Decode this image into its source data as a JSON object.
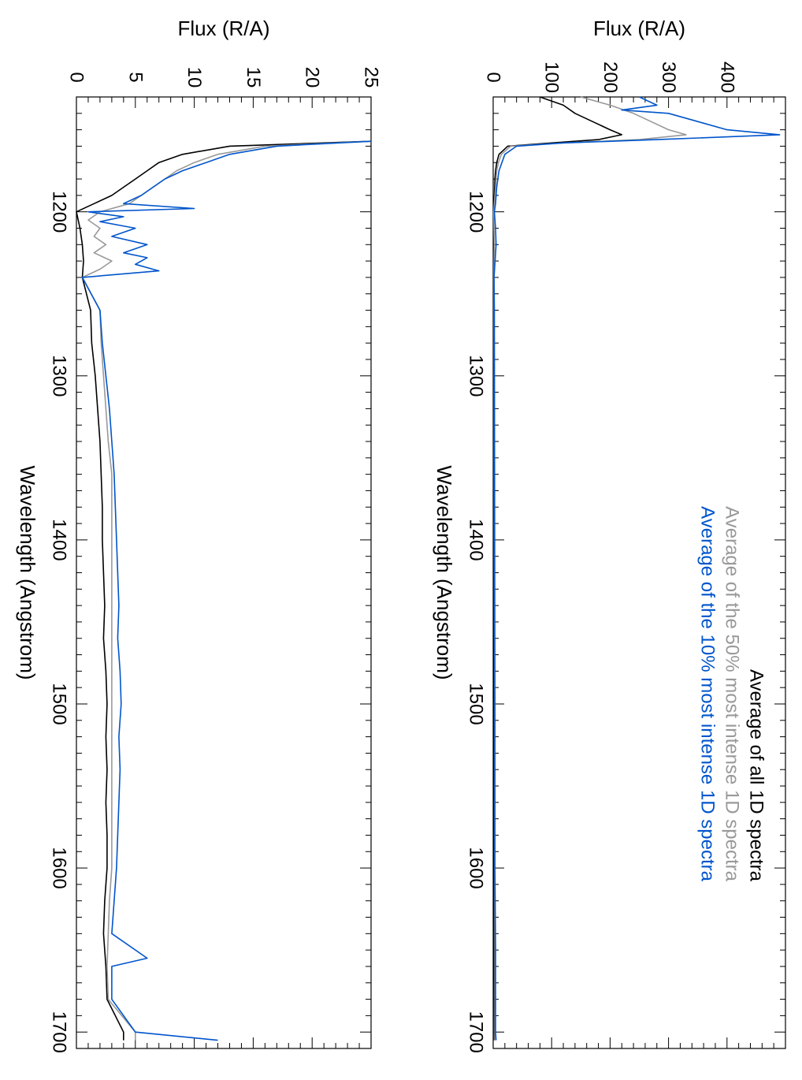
{
  "colors": {
    "all": "#000000",
    "top50": "#999999",
    "top10": "#0055cc",
    "axes": "#000000"
  },
  "orientation": "rotated-90-clockwise",
  "chart_data": [
    {
      "type": "line",
      "panel": "upper",
      "xlabel": "Wavelength (Angstrom)",
      "ylabel": "Flux (R/A)",
      "xlim": [
        1130,
        1710
      ],
      "ylim": [
        0,
        500
      ],
      "x_ticks": [
        1200,
        1300,
        1400,
        1500,
        1600,
        1700
      ],
      "y_ticks": [
        0,
        100,
        200,
        300,
        400
      ],
      "legend_position": "top-right",
      "legend": [
        "Average of all 1D spectra",
        "Average of the 50% most intense 1D spectra",
        "Average of the 10% most intense 1D spectra"
      ],
      "series": [
        {
          "name": "Average of all 1D spectra",
          "color": "#000000",
          "x": [
            1130,
            1135,
            1140,
            1145,
            1150,
            1153,
            1156,
            1158,
            1160,
            1165,
            1170,
            1175,
            1180,
            1185,
            1190,
            1195,
            1200,
            1210,
            1220,
            1240,
            1260,
            1300,
            1400,
            1500,
            1600,
            1650,
            1700,
            1705
          ],
          "y": [
            80,
            120,
            140,
            170,
            200,
            220,
            180,
            100,
            25,
            10,
            6,
            4,
            3,
            2.5,
            2,
            1,
            0.5,
            0.5,
            0.6,
            0.8,
            1,
            1,
            1.2,
            1.3,
            1.4,
            1.6,
            2,
            2
          ]
        },
        {
          "name": "Average of the 50% most intense 1D spectra",
          "color": "#999999",
          "x": [
            1130,
            1135,
            1140,
            1145,
            1150,
            1153,
            1156,
            1158,
            1160,
            1165,
            1170,
            1175,
            1180,
            1185,
            1190,
            1195,
            1200,
            1210,
            1220,
            1240,
            1260,
            1300,
            1400,
            1500,
            1600,
            1650,
            1700,
            1705
          ],
          "y": [
            150,
            200,
            240,
            270,
            300,
            330,
            250,
            120,
            30,
            14,
            9,
            6,
            5,
            4,
            3,
            2,
            1,
            1.5,
            2,
            1.2,
            1.5,
            1.8,
            2,
            2.5,
            2.5,
            3,
            3,
            3
          ]
        },
        {
          "name": "Average of the 10% most intense 1D spectra",
          "color": "#0055cc",
          "x": [
            1130,
            1135,
            1138,
            1140,
            1145,
            1150,
            1153,
            1156,
            1158,
            1160,
            1165,
            1170,
            1175,
            1180,
            1185,
            1190,
            1195,
            1200,
            1210,
            1220,
            1240,
            1260,
            1300,
            1400,
            1500,
            1600,
            1650,
            1700,
            1705
          ],
          "y": [
            250,
            280,
            220,
            300,
            350,
            400,
            490,
            280,
            120,
            40,
            20,
            15,
            10,
            8,
            6,
            5,
            4,
            2,
            4,
            5,
            1.5,
            2,
            2.2,
            2.5,
            3,
            3,
            4,
            4,
            5
          ]
        }
      ]
    },
    {
      "type": "line",
      "panel": "lower",
      "xlabel": "Wavelength (Angstrom)",
      "ylabel": "Flux (R/A)",
      "xlim": [
        1130,
        1710
      ],
      "ylim": [
        0,
        25
      ],
      "x_ticks": [
        1200,
        1300,
        1400,
        1500,
        1600,
        1700
      ],
      "y_ticks": [
        0,
        5,
        10,
        15,
        20,
        25
      ],
      "series": [
        {
          "name": "Average of all 1D spectra",
          "color": "#000000",
          "x": [
            1157,
            1160,
            1165,
            1170,
            1175,
            1180,
            1185,
            1190,
            1195,
            1200,
            1210,
            1220,
            1230,
            1240,
            1260,
            1280,
            1300,
            1320,
            1340,
            1360,
            1380,
            1400,
            1420,
            1440,
            1460,
            1480,
            1500,
            1520,
            1540,
            1560,
            1580,
            1600,
            1620,
            1640,
            1660,
            1680,
            1700,
            1705
          ],
          "y": [
            25,
            13,
            9,
            7,
            6,
            5,
            4,
            3,
            1.5,
            0,
            0.3,
            0.5,
            0.6,
            0.5,
            1.2,
            1.3,
            1.6,
            1.8,
            2,
            2.1,
            2.2,
            2.2,
            2.3,
            2.4,
            2.3,
            2.5,
            2.6,
            2.5,
            2.6,
            2.5,
            2.6,
            2.6,
            2.4,
            2.3,
            2.5,
            2.6,
            4,
            4
          ]
        },
        {
          "name": "Average of the 50% most intense 1D spectra",
          "color": "#999999",
          "x": [
            1157,
            1160,
            1165,
            1170,
            1175,
            1180,
            1185,
            1190,
            1195,
            1200,
            1205,
            1210,
            1215,
            1220,
            1225,
            1230,
            1235,
            1240,
            1260,
            1280,
            1300,
            1320,
            1340,
            1360,
            1380,
            1400,
            1420,
            1440,
            1460,
            1480,
            1500,
            1520,
            1540,
            1560,
            1580,
            1600,
            1620,
            1640,
            1660,
            1680,
            1700,
            1705
          ],
          "y": [
            25,
            16,
            12,
            10,
            8.5,
            7.5,
            6.5,
            5.5,
            4.5,
            2,
            1,
            2,
            1.5,
            2.5,
            1.5,
            3,
            2,
            0.5,
            2,
            2.1,
            2.3,
            2.5,
            2.7,
            3,
            3,
            3,
            3,
            3,
            3,
            3,
            3,
            3,
            3,
            3,
            3,
            3,
            2.8,
            2.7,
            2.6,
            2.7,
            5,
            5
          ]
        },
        {
          "name": "Average of the 10% most intense 1D spectra",
          "color": "#0055cc",
          "x": [
            1157,
            1160,
            1165,
            1170,
            1175,
            1180,
            1185,
            1190,
            1195,
            1198,
            1200,
            1203,
            1206,
            1210,
            1215,
            1220,
            1225,
            1228,
            1232,
            1236,
            1240,
            1260,
            1280,
            1300,
            1320,
            1340,
            1360,
            1380,
            1400,
            1420,
            1440,
            1460,
            1480,
            1500,
            1520,
            1540,
            1560,
            1580,
            1600,
            1620,
            1640,
            1655,
            1660,
            1680,
            1700,
            1705
          ],
          "y": [
            25,
            17,
            13,
            11,
            9,
            7.5,
            6.5,
            5.5,
            4,
            10,
            1,
            4,
            2,
            5,
            3,
            6,
            4,
            6,
            5,
            7,
            0.5,
            2,
            2.2,
            2.5,
            2.8,
            3,
            3.2,
            3.3,
            3.4,
            3.5,
            3.6,
            3.5,
            3.7,
            3.8,
            3.6,
            3.7,
            3.6,
            3.5,
            3.4,
            3.2,
            3,
            6,
            3,
            3,
            5,
            12
          ]
        }
      ]
    }
  ]
}
